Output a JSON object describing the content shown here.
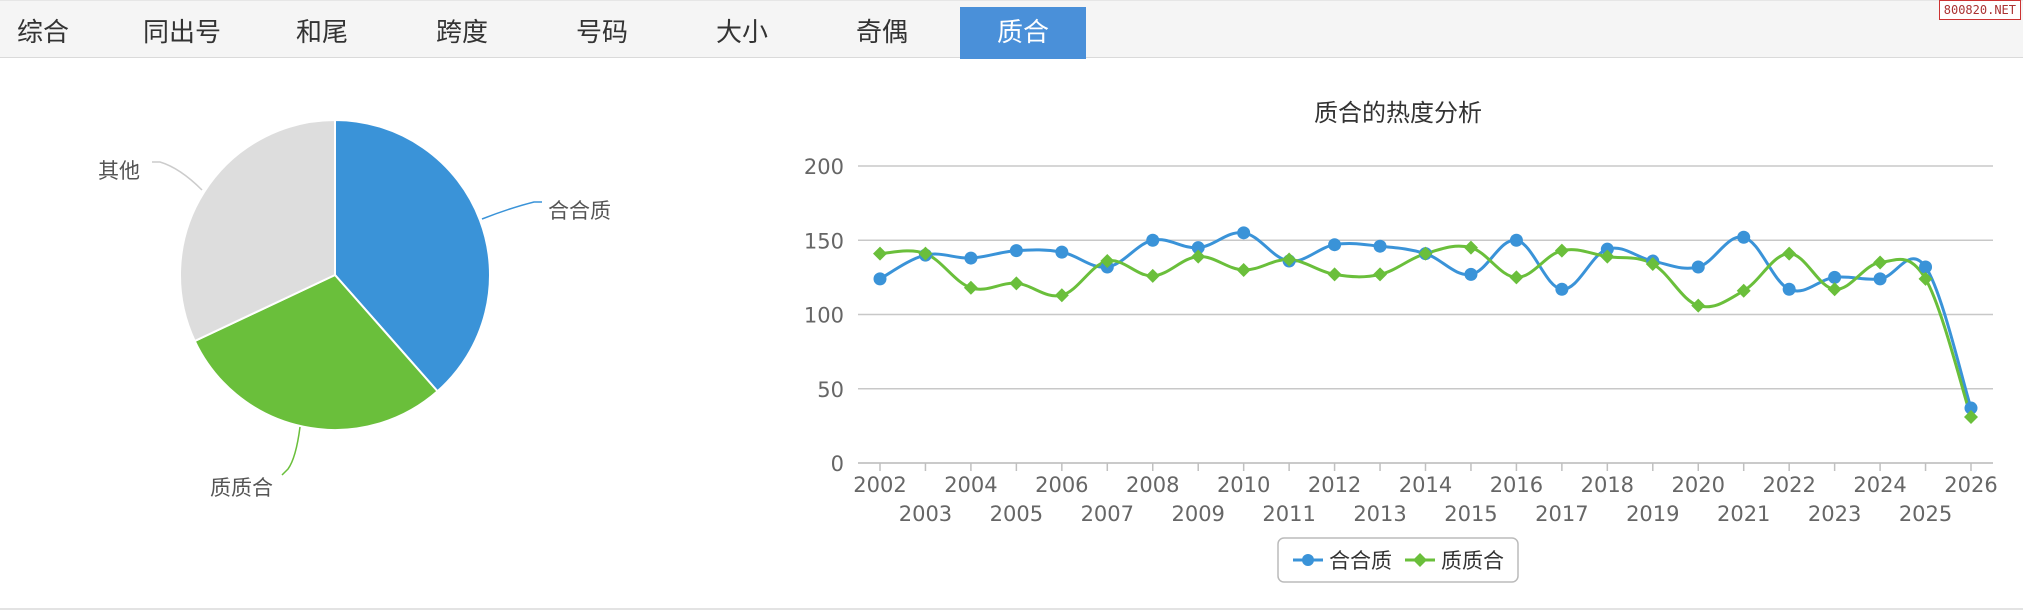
{
  "tabs": [
    {
      "label": "综合"
    },
    {
      "label": "同出号"
    },
    {
      "label": "和尾"
    },
    {
      "label": "跨度"
    },
    {
      "label": "号码"
    },
    {
      "label": "大小"
    },
    {
      "label": "奇偶"
    },
    {
      "label": "质合",
      "active": true
    }
  ],
  "watermark": "800820.NET",
  "colors": {
    "blue": "#3a93d8",
    "green": "#6abf3b",
    "gray": "#dddddd",
    "accent": "#4a90d9"
  },
  "chart_data": [
    {
      "type": "pie",
      "slices": [
        {
          "label": "合合质",
          "value": 38.5,
          "color": "#3a93d8"
        },
        {
          "label": "质质合",
          "value": 29.5,
          "color": "#6abf3b"
        },
        {
          "label": "其他",
          "value": 32.0,
          "color": "#dddddd"
        }
      ]
    },
    {
      "type": "line",
      "title": "质合的热度分析",
      "x": [
        2002,
        2003,
        2004,
        2005,
        2006,
        2007,
        2008,
        2009,
        2010,
        2011,
        2012,
        2013,
        2014,
        2015,
        2016,
        2017,
        2018,
        2019,
        2020,
        2021,
        2022,
        2023,
        2024,
        2025,
        2026
      ],
      "ylim": [
        0,
        200
      ],
      "yticks": [
        0,
        50,
        100,
        150,
        200
      ],
      "grid": true,
      "legend": "bottom",
      "series": [
        {
          "name": "合合质",
          "color": "#3a93d8",
          "marker": "circle",
          "values": [
            124,
            140,
            138,
            143,
            142,
            132,
            150,
            145,
            155,
            136,
            147,
            146,
            141,
            127,
            150,
            117,
            144,
            136,
            132,
            152,
            117,
            125,
            124,
            132,
            37
          ]
        },
        {
          "name": "质质合",
          "color": "#6abf3b",
          "marker": "diamond",
          "values": [
            141,
            141,
            118,
            121,
            113,
            136,
            126,
            139,
            130,
            137,
            127,
            127,
            141,
            145,
            125,
            143,
            139,
            134,
            106,
            116,
            141,
            117,
            135,
            124,
            31
          ]
        }
      ]
    }
  ]
}
